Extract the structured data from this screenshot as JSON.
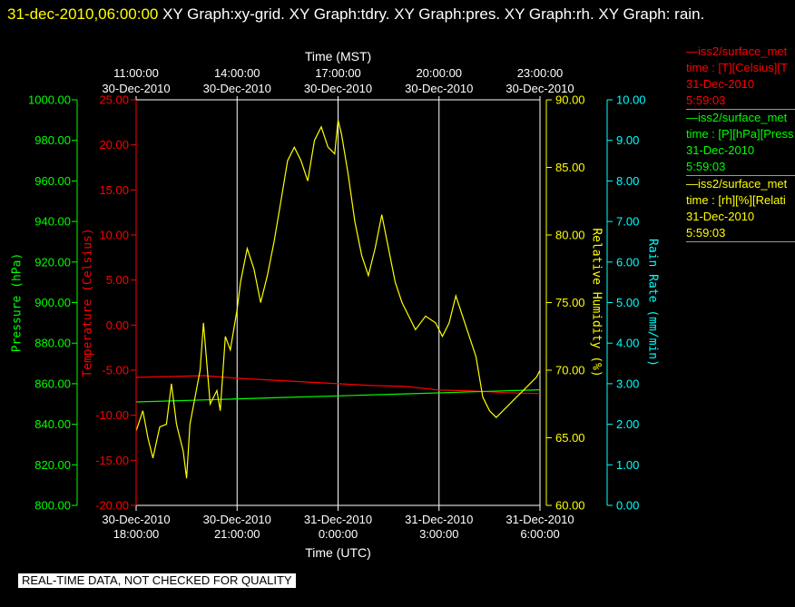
{
  "header": {
    "date": "31-dec-2010,06:00:00",
    "title": "  XY Graph:xy-grid.  XY Graph:tdry.  XY Graph:pres.  XY Graph:rh.  XY Graph: rain."
  },
  "footer": {
    "quality_note": "REAL-TIME DATA, NOT CHECKED FOR QUALITY"
  },
  "legend": [
    {
      "line1": "—iss2/surface_met",
      "line2": "time : [T][Celsius][T",
      "line3": "31-Dec-2010",
      "line4": "5:59:03",
      "color": "#ff0000"
    },
    {
      "line1": "—iss2/surface_met",
      "line2": "time : [P][hPa][Press",
      "line3": "31-Dec-2010",
      "line4": "5:59:03",
      "color": "#00ff00"
    },
    {
      "line1": "—iss2/surface_met",
      "line2": "time : [rh][%][Relati",
      "line3": "31-Dec-2010",
      "line4": "5:59:03",
      "color": "#ffff00"
    }
  ],
  "chart_data": {
    "type": "line",
    "top_axis": {
      "title": "Time (MST)",
      "ticks": [
        {
          "hour": 0,
          "time": "11:00:00",
          "date": "30-Dec-2010"
        },
        {
          "hour": 3,
          "time": "14:00:00",
          "date": "30-Dec-2010"
        },
        {
          "hour": 6,
          "time": "17:00:00",
          "date": "30-Dec-2010"
        },
        {
          "hour": 9,
          "time": "20:00:00",
          "date": "30-Dec-2010"
        },
        {
          "hour": 12,
          "time": "23:00:00",
          "date": "30-Dec-2010"
        }
      ]
    },
    "bottom_axis": {
      "title": "Time (UTC)",
      "ticks": [
        {
          "hour": 0,
          "date": "30-Dec-2010",
          "time": "18:00:00"
        },
        {
          "hour": 3,
          "date": "30-Dec-2010",
          "time": "21:00:00"
        },
        {
          "hour": 6,
          "date": "31-Dec-2010",
          "time": "0:00:00"
        },
        {
          "hour": 9,
          "date": "31-Dec-2010",
          "time": "3:00:00"
        },
        {
          "hour": 12,
          "date": "31-Dec-2010",
          "time": "6:00:00"
        }
      ]
    },
    "x_range_hours": [
      0,
      12
    ],
    "grid": "vertical lines at bottom-axis ticks",
    "axes": {
      "pressure": {
        "label": "Pressure (hPa)",
        "color": "#00ff00",
        "range": [
          800,
          1000
        ],
        "ticks": [
          "800.00",
          "820.00",
          "840.00",
          "860.00",
          "880.00",
          "900.00",
          "920.00",
          "940.00",
          "960.00",
          "980.00",
          "1000.00"
        ]
      },
      "temperature": {
        "label": "Temperature (Celsius)",
        "color": "#ff0000",
        "range": [
          -20,
          25
        ],
        "ticks": [
          "-20.00",
          "-15.00",
          "-10.00",
          "-5.00",
          "0.00",
          "5.00",
          "10.00",
          "15.00",
          "20.00",
          "25.00"
        ]
      },
      "rh": {
        "label": "Relative Humidity (%)",
        "color": "#ffff00",
        "range": [
          60,
          90
        ],
        "ticks": [
          "60.00",
          "65.00",
          "70.00",
          "75.00",
          "80.00",
          "85.00",
          "90.00"
        ]
      },
      "rain": {
        "label": "Rain Rate (mm/min)",
        "color": "#00ffff",
        "range": [
          0,
          10
        ],
        "ticks": [
          "0.00",
          "1.00",
          "2.00",
          "3.00",
          "4.00",
          "5.00",
          "6.00",
          "7.00",
          "8.00",
          "9.00",
          "10.00"
        ]
      }
    },
    "series": [
      {
        "name": "iss2/surface_met T",
        "axis": "temperature",
        "color": "#ff0000",
        "x": [
          0,
          1,
          2,
          3,
          4,
          5,
          6,
          7,
          8,
          9,
          10,
          11,
          12
        ],
        "y": [
          -5.8,
          -5.7,
          -5.6,
          -5.9,
          -6.1,
          -6.3,
          -6.5,
          -6.7,
          -6.8,
          -7.2,
          -7.3,
          -7.5,
          -7.6
        ]
      },
      {
        "name": "iss2/surface_met P",
        "axis": "pressure",
        "color": "#00ff00",
        "x": [
          0,
          2,
          4,
          6,
          8,
          10,
          12
        ],
        "y": [
          851,
          852,
          853,
          854,
          855,
          856,
          857
        ]
      },
      {
        "name": "iss2/surface_met rh",
        "axis": "rh",
        "color": "#ffff00",
        "x": [
          0,
          0.2,
          0.35,
          0.5,
          0.7,
          0.9,
          1.05,
          1.2,
          1.4,
          1.5,
          1.6,
          1.75,
          1.9,
          2.0,
          2.2,
          2.4,
          2.5,
          2.65,
          2.8,
          3.0,
          3.1,
          3.3,
          3.5,
          3.7,
          3.9,
          4.1,
          4.3,
          4.5,
          4.7,
          4.9,
          5.1,
          5.3,
          5.5,
          5.7,
          5.9,
          6.0,
          6.1,
          6.3,
          6.5,
          6.7,
          6.9,
          7.1,
          7.3,
          7.5,
          7.7,
          7.9,
          8.1,
          8.3,
          8.6,
          8.9,
          9.1,
          9.3,
          9.5,
          9.7,
          9.9,
          10.1,
          10.3,
          10.5,
          10.7,
          10.9,
          11.1,
          11.3,
          11.5,
          11.7,
          11.9,
          12.0
        ],
        "y": [
          65.5,
          67.0,
          65.0,
          63.5,
          65.8,
          66.0,
          69.0,
          66.0,
          64.0,
          62.0,
          66.0,
          68.0,
          70.0,
          73.5,
          67.5,
          68.5,
          67.0,
          72.5,
          71.5,
          74.5,
          76.5,
          79.0,
          77.5,
          75.0,
          77.0,
          79.5,
          82.5,
          85.5,
          86.5,
          85.5,
          84.0,
          87.0,
          88.0,
          86.5,
          86.0,
          88.5,
          87.5,
          84.5,
          81.0,
          78.5,
          77.0,
          79.0,
          81.5,
          79.0,
          76.5,
          75.0,
          74.0,
          73.0,
          74.0,
          73.5,
          72.5,
          73.5,
          75.5,
          74.0,
          72.5,
          71.0,
          68.0,
          67.0,
          66.5,
          67.0,
          67.5,
          68.0,
          68.5,
          69.0,
          69.5,
          70.0
        ]
      }
    ]
  }
}
